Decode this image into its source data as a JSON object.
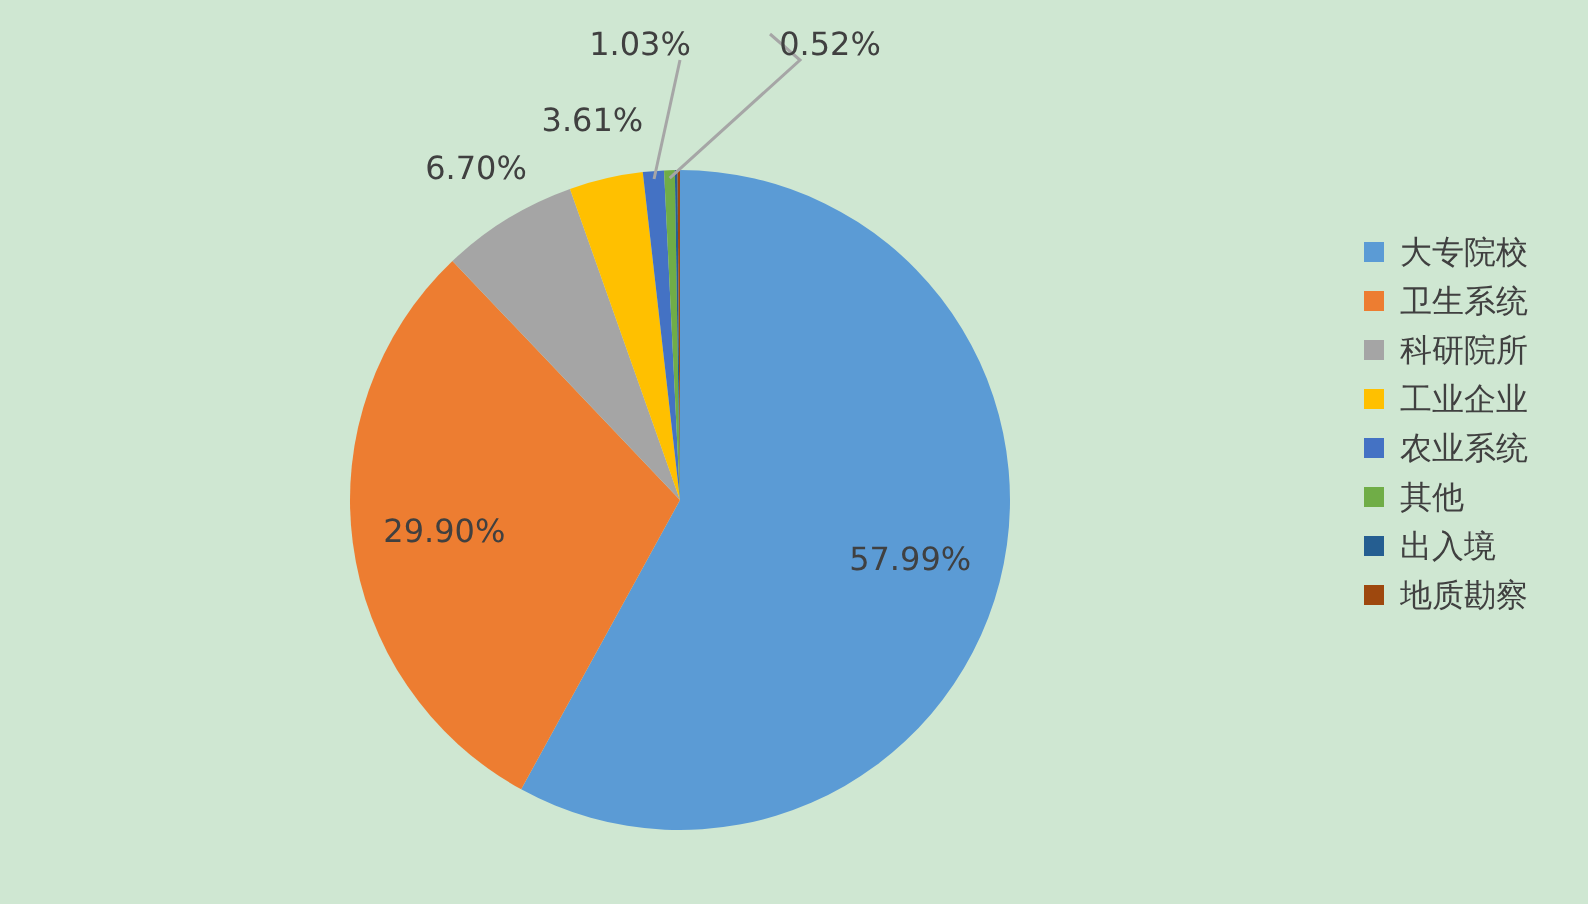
{
  "chart_data": {
    "type": "pie",
    "categories": [
      "大专院校",
      "卫生系统",
      "科研院所",
      "工业企业",
      "农业系统",
      "其他",
      "出入境",
      "地质勘察"
    ],
    "values": [
      57.99,
      29.9,
      6.7,
      3.61,
      1.03,
      0.52,
      0.13,
      0.12
    ],
    "colors": [
      "#5b9bd5",
      "#ed7d31",
      "#a5a5a5",
      "#ffc000",
      "#4472c4",
      "#70ad47",
      "#255e91",
      "#9e480e"
    ],
    "value_labels": [
      "57.99%",
      "29.90%",
      "6.70%",
      "3.61%",
      "1.03%",
      "0.52%",
      null,
      null
    ],
    "legend": "right"
  }
}
